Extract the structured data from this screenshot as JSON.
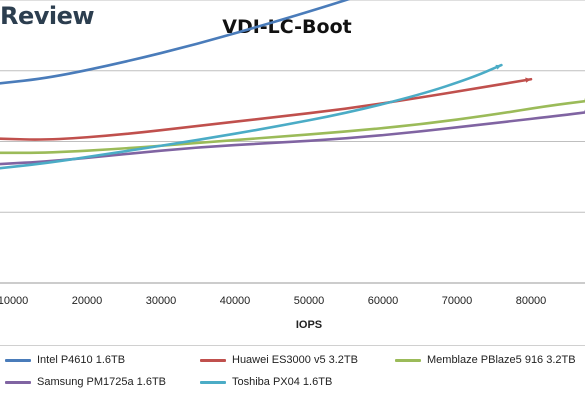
{
  "brand": {
    "name": "Review"
  },
  "colors": {
    "intel": "#4a7cba",
    "huawei": "#c0504d",
    "memblaze": "#9bbb59",
    "samsung": "#8064a2",
    "toshiba": "#4bacc6"
  },
  "chart_data": {
    "type": "line",
    "title": "VDI-LC-Boot",
    "xlabel": "IOPS",
    "ylabel": "",
    "x_ticks": [
      10000,
      20000,
      30000,
      40000,
      50000,
      60000,
      70000,
      80000
    ],
    "grid": true,
    "legend_position": "bottom",
    "series": [
      {
        "name": "Intel P4610 1.6TB",
        "color_key": "intel",
        "x": [
          8000,
          15000,
          25000,
          35000,
          45000,
          52000,
          58000
        ],
        "y": [
          0.705,
          0.725,
          0.78,
          0.845,
          0.92,
          0.975,
          1.025
        ]
      },
      {
        "name": "Huawei ES3000 v5 3.2TB",
        "color_key": "huawei",
        "x": [
          8000,
          15000,
          25000,
          35000,
          45000,
          55000,
          65000,
          72000,
          80000
        ],
        "y": [
          0.51,
          0.505,
          0.525,
          0.555,
          0.585,
          0.615,
          0.655,
          0.685,
          0.72
        ]
      },
      {
        "name": "Memblaze PBlaze5 916 3.2TB",
        "color_key": "memblaze",
        "x": [
          8000,
          15000,
          25000,
          35000,
          45000,
          55000,
          65000,
          75000,
          82000,
          88000
        ],
        "y": [
          0.46,
          0.46,
          0.475,
          0.495,
          0.515,
          0.535,
          0.56,
          0.595,
          0.625,
          0.645
        ]
      },
      {
        "name": "Samsung PM1725a 1.6TB",
        "color_key": "samsung",
        "x": [
          8000,
          15000,
          25000,
          35000,
          45000,
          55000,
          65000,
          75000,
          85000,
          88000
        ],
        "y": [
          0.42,
          0.43,
          0.455,
          0.48,
          0.495,
          0.51,
          0.535,
          0.565,
          0.595,
          0.605
        ]
      },
      {
        "name": "Toshiba PX04 1.6TB",
        "color_key": "toshiba",
        "x": [
          8000,
          15000,
          25000,
          35000,
          45000,
          55000,
          65000,
          72000,
          76000
        ],
        "y": [
          0.405,
          0.425,
          0.465,
          0.505,
          0.55,
          0.6,
          0.665,
          0.725,
          0.77
        ]
      }
    ]
  }
}
